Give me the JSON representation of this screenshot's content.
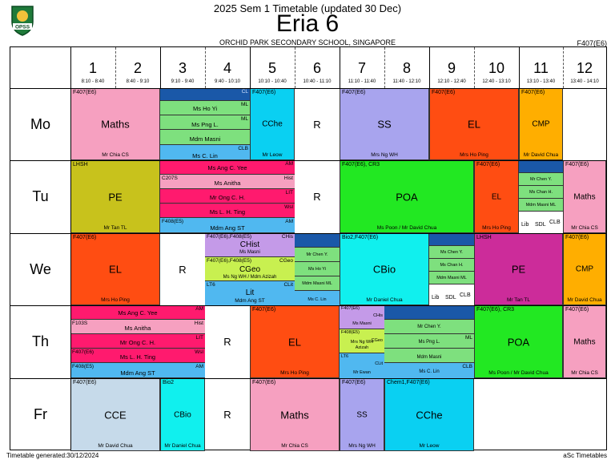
{
  "header": {
    "title": "2025 Sem 1 Timetable (updated 30 Dec)",
    "class_name": "Eria 6",
    "school": "ORCHID PARK SECONDARY SCHOOL, SINGAPORE",
    "room_code": "F407(E6)",
    "logo_text": "OPSS"
  },
  "footer": {
    "generated": "Timetable generated:30/12/2024",
    "brand": "aSc Timetables"
  },
  "periods": [
    {
      "num": "1",
      "time": "8:10 - 8:40"
    },
    {
      "num": "2",
      "time": "8:40 - 9:10"
    },
    {
      "num": "3",
      "time": "9:10 - 9:40"
    },
    {
      "num": "4",
      "time": "9:40 - 10:10"
    },
    {
      "num": "5",
      "time": "10:10 - 10:40"
    },
    {
      "num": "6",
      "time": "10:40 - 11:10"
    },
    {
      "num": "7",
      "time": "11:10 - 11:40"
    },
    {
      "num": "8",
      "time": "11:40 - 12:10"
    },
    {
      "num": "9",
      "time": "12:10 - 12:40"
    },
    {
      "num": "10",
      "time": "12:40 - 13:10"
    },
    {
      "num": "11",
      "time": "13:10 - 13:40"
    },
    {
      "num": "12",
      "time": "13:40 - 14:10"
    }
  ],
  "days": [
    "Mo",
    "Tu",
    "We",
    "Th",
    "Fr"
  ],
  "colors": {
    "maths": "#f6a0c0",
    "pe": "#c8c21c",
    "el": "#ff4d12",
    "cche": "#0ad0f2",
    "ss": "#a8a4ee",
    "cmp": "#ffae00",
    "poa": "#22e822",
    "cbio": "#10f0ee",
    "pe_we": "#cc2c9a",
    "cce": "#c6daea",
    "humanities": "#ff1a6e",
    "mt": "#1a6ac0",
    "lit": "#50b8f0"
  },
  "lessons": {
    "mo": {
      "maths": {
        "room": "F407(E6)",
        "subject": "Maths",
        "teacher": "Mr Chia CS"
      },
      "cche": {
        "room": "F407(E6)",
        "subject": "CChe",
        "teacher": "Mr Leow"
      },
      "r": "R",
      "ss": {
        "room": "F407(E6)",
        "subject": "SS",
        "teacher": "Mrs Ng WH"
      },
      "el": {
        "room": "F407(E6)",
        "subject": "EL",
        "teacher": "Mrs Ho Ping"
      },
      "cmp": {
        "room": "F407(E6)",
        "subject": "CMP",
        "teacher": "Mr David Chua"
      },
      "mt": {
        "r1": "CL",
        "r2_teacher": "Ms Ho Yi",
        "r2_tag": "ML",
        "r3_teacher": "Ms Png L.",
        "r3_tag": "ML",
        "r4_teacher": "Mdm Masni",
        "r4_tag": "CLB",
        "r5_teacher": "Ms C. Lin"
      }
    },
    "tu": {
      "pe": {
        "room": "LHSH",
        "subject": "PE",
        "teacher": "Mr Tan TL"
      },
      "hum": [
        {
          "teacher": "Ms Ang C. Yee",
          "tag": "AM"
        },
        {
          "room": "C207S",
          "teacher": "Ms Anitha",
          "tag": "Hist"
        },
        {
          "teacher": "Mr Ong C. H.",
          "tag": "LIT"
        },
        {
          "teacher": "Ms L. H. Ting",
          "tag": "Wsl"
        },
        {
          "room": "F408(E5)",
          "teacher": "Mdm Ang ST",
          "tag": "AM"
        }
      ],
      "r": "R",
      "poa": {
        "room": "F407(E6), CR3",
        "subject": "POA",
        "teacher": "Ms Poon / Mr David Chua"
      },
      "el": {
        "room": "F407(E6)",
        "subject": "EL",
        "teacher": "Mrs Ho Ping"
      },
      "maths": {
        "room": "F407(E6)",
        "subject": "Maths",
        "teacher": "Mr Chia CS"
      },
      "mt": {
        "m1": "Mr Chen Y.",
        "m2": "Ms Chan H.",
        "m3": "Mdm Masni ML",
        "lib": "Lib",
        "sdl": "SDL",
        "clb": "CLB"
      }
    },
    "we": {
      "el": {
        "room": "F407(E6)",
        "subject": "EL",
        "teacher": "Mrs Ho Ping"
      },
      "r": "R",
      "chist": {
        "room": "F407(E6),F408(E5)",
        "subject": "CHist",
        "teacher": "Ms Masni",
        "tag": "CHis"
      },
      "cgeo": {
        "room": "F407(E6),F408(E5)",
        "subject": "CGeo",
        "teacher": "Ms Ng WH / Mdm Azizah",
        "tag": "CGeo"
      },
      "lit": {
        "room": "LT6",
        "subject": "Lit",
        "teacher": "Mdm Ang ST",
        "tag": "CLit"
      },
      "mt1": {
        "m1": "Mr Chen Y.",
        "m2": "Ms Ho Yi",
        "m3": "Mdm Masni ML",
        "m4": "Ms C. Lin"
      },
      "cbio": {
        "room": "Bio2,F407(E6)",
        "subject": "CBio",
        "teacher": "Mr Daniel Chua"
      },
      "mt2": {
        "m1": "Ms Chen Y.",
        "m2": "Ms Chan H.",
        "m3": "Mdm Masni ML",
        "lib": "Lib",
        "sdl": "SDL",
        "clb": "CLB"
      },
      "pe": {
        "room": "LHSH",
        "subject": "PE",
        "teacher": "Mr Tan TL"
      },
      "cmp": {
        "room": "F407(E6)",
        "subject": "CMP",
        "teacher": "Mr David Chua"
      }
    },
    "th": {
      "hum": [
        {
          "teacher": "Ms Ang C. Yee",
          "tag": "AM"
        },
        {
          "room": "F103S",
          "teacher": "Ms Anitha",
          "tag": "Hist"
        },
        {
          "teacher": "Mr Ong C. H.",
          "tag": "LIT"
        },
        {
          "room": "F407(E6)",
          "teacher": "Ms L. H. Ting",
          "tag": "Wsl"
        },
        {
          "room": "F408(E5)",
          "teacher": "Mdm Ang ST",
          "tag": "AM"
        }
      ],
      "r": "R",
      "el": {
        "room": "F407(E6)",
        "subject": "EL",
        "teacher": "Mrs Ho Ping"
      },
      "geo": {
        "r1": "F407(E6)",
        "r2": "F408(E5)",
        "teacher": "Ms Masni",
        "t2": "Mrs Ng WH",
        "t3": "Azizah",
        "tag": "CHis",
        "tag2": "CGeo",
        "lt": "LT6",
        "t4": "Mr Ewan",
        "tag3": "CLit"
      },
      "mt": {
        "m1": "Mr Chen Y.",
        "m2": "Ms Png L.",
        "m2tag": "ML",
        "m3": "Mdm Masni",
        "m4": "Ms C. Lin",
        "m4tag": "CLB"
      },
      "poa": {
        "room": "F407(E6), CR3",
        "subject": "POA",
        "teacher": "Ms Poon / Mr David Chua"
      },
      "maths": {
        "room": "F407(E6)",
        "subject": "Maths",
        "teacher": "Mr Chia CS"
      }
    },
    "fr": {
      "cce": {
        "room": "F407(E6)",
        "subject": "CCE",
        "teacher": "Mr David Chua"
      },
      "cbio": {
        "room": "Bio2",
        "subject": "CBio",
        "teacher": "Mr Daniel Chua"
      },
      "r": "R",
      "maths": {
        "room": "F407(E6)",
        "subject": "Maths",
        "teacher": "Mr Chia CS"
      },
      "ss": {
        "room": "F407(E6)",
        "subject": "SS",
        "teacher": "Mrs Ng WH"
      },
      "cche": {
        "room": "Chem1,F407(E6)",
        "subject": "CChe",
        "teacher": "Mr Leow"
      }
    }
  }
}
